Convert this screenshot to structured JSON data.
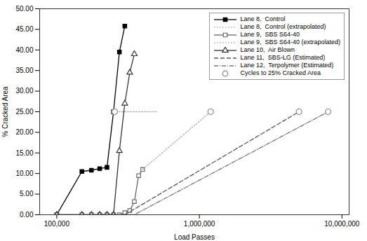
{
  "chart_data": {
    "type": "line",
    "xlabel": "Load Passes",
    "ylabel": "% Cracked Area",
    "log": "x",
    "grid": false,
    "legend": "upper right",
    "xlim": [
      75857.75750291836,
      11220184.543019636
    ],
    "xticks": [
      {
        "value": 100000,
        "label": "100,000"
      },
      {
        "value": 1000000,
        "label": "1,000,000"
      },
      {
        "value": 10000000,
        "label": "10,000,000"
      }
    ],
    "ylim": [
      0,
      50
    ],
    "yticks": [
      {
        "value": 0,
        "label": "0.00"
      },
      {
        "value": 5,
        "label": "5.00"
      },
      {
        "value": 10,
        "label": "10.00"
      },
      {
        "value": 15,
        "label": "15.00"
      },
      {
        "value": 20,
        "label": "20.00"
      },
      {
        "value": 25,
        "label": "25.00"
      },
      {
        "value": 30,
        "label": "30.00"
      },
      {
        "value": 35,
        "label": "35.00"
      },
      {
        "value": 40,
        "label": "40.00"
      },
      {
        "value": 45,
        "label": "45.00"
      },
      {
        "value": 50,
        "label": "50.00"
      }
    ],
    "series": [
      {
        "name": "Lane 8,  Control",
        "color": "#000000",
        "marker": "square",
        "line_style": "solid",
        "x": [
          100000,
          150000,
          175000,
          200000,
          225000,
          250000,
          275000,
          300000
        ],
        "values": [
          0.0,
          10.5,
          10.8,
          11.2,
          11.5,
          25.0,
          39.5,
          45.8
        ]
      },
      {
        "name": "Lane 8,  Control (extrapolated)",
        "color": "#aaaaaa",
        "marker": "none",
        "line_style": "dotted",
        "x": [
          250000,
          500000
        ],
        "values": [
          25.0,
          25.0
        ]
      },
      {
        "name": "Lane 9,  SBS S64-40",
        "color": "#666666",
        "marker": "open_square",
        "line_style": "solid",
        "x": [
          100000,
          150000,
          175000,
          200000,
          225000,
          250000,
          275000,
          300000,
          325000,
          350000,
          375000,
          400000
        ],
        "values": [
          0.0,
          0.0,
          0.0,
          0.0,
          0.0,
          0.0,
          0.0,
          0.5,
          1.0,
          3.2,
          9.5,
          11.0
        ]
      },
      {
        "name": "Lane 9,  SBS S64-40 (extrapolated)",
        "color": "#aaaaaa",
        "marker": "none",
        "line_style": "dotted",
        "x": [
          400000,
          1200000
        ],
        "values": [
          11.0,
          25.0
        ]
      },
      {
        "name": "Lane 10,  Air Blown",
        "color": "#333333",
        "marker": "open_triangle",
        "line_style": "solid",
        "x": [
          100000,
          150000,
          175000,
          200000,
          225000,
          250000,
          275000,
          300000,
          325000,
          350000
        ],
        "values": [
          0.0,
          0.0,
          0.0,
          0.0,
          0.0,
          0.0,
          15.5,
          27.0,
          34.5,
          39.0
        ]
      },
      {
        "name": "Lane 11,  SBS-LG (Estimated)",
        "color": "#555555",
        "marker": "none",
        "line_style": "dashed",
        "x": [
          200000,
          300000,
          5000000
        ],
        "values": [
          0.0,
          0.0,
          25.0
        ]
      },
      {
        "name": "Lane 12,  Terpolymer (Estimated)",
        "color": "#777777",
        "marker": "none",
        "line_style": "dashdot",
        "x": [
          250000,
          350000,
          8000000
        ],
        "values": [
          0.0,
          0.0,
          25.0
        ]
      },
      {
        "name": "Cycles to 25% Cracked Area",
        "color": "#888888",
        "marker": "open_circle",
        "line_style": "none",
        "x": [
          255000,
          1200000,
          5000000,
          8000000
        ],
        "values": [
          25.0,
          25.0,
          25.0,
          25.0
        ]
      }
    ]
  }
}
